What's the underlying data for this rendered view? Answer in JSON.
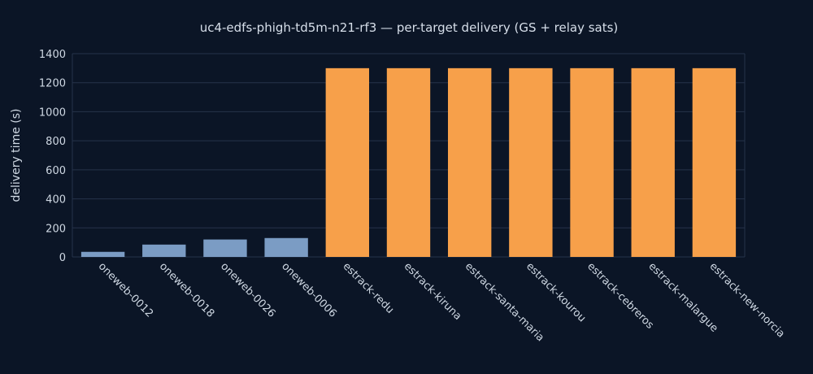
{
  "chart_data": {
    "type": "bar",
    "title": "uc4-edfs-phigh-td5m-n21-rf3 — per-target delivery (GS + relay sats)",
    "xlabel": "",
    "ylabel": "delivery time (s)",
    "ylim": [
      0,
      1400
    ],
    "yticks": [
      0,
      200,
      400,
      600,
      800,
      1000,
      1200,
      1400
    ],
    "grid": true,
    "legend": "none",
    "categories": [
      "oneweb-0012",
      "oneweb-0018",
      "oneweb-0026",
      "oneweb-0006",
      "estrack-redu",
      "estrack-kiruna",
      "estrack-santa-maria",
      "estrack-kourou",
      "estrack-cebreros",
      "estrack-malargue",
      "estrack-new-norcia"
    ],
    "values": [
      35,
      85,
      120,
      130,
      1300,
      1300,
      1300,
      1300,
      1300,
      1300,
      1300
    ],
    "bar_colors": [
      "#7b9cc4",
      "#7b9cc4",
      "#7b9cc4",
      "#7b9cc4",
      "#f7a04a",
      "#f7a04a",
      "#f7a04a",
      "#f7a04a",
      "#f7a04a",
      "#f7a04a",
      "#f7a04a"
    ]
  }
}
